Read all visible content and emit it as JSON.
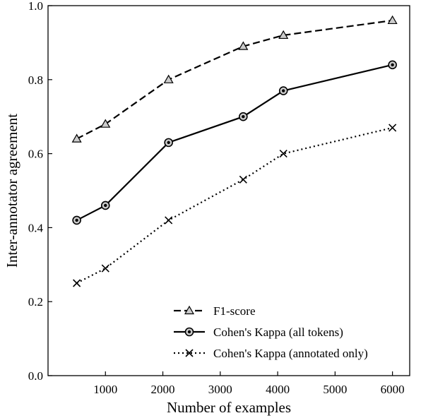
{
  "chart_data": {
    "type": "line",
    "title": "",
    "xlabel": "Number of examples",
    "ylabel": "Inter-annotator agreement",
    "xlim": [
      0,
      6300
    ],
    "ylim": [
      0.0,
      1.0
    ],
    "x_ticks": [
      1000,
      2000,
      3000,
      4000,
      5000,
      6000
    ],
    "y_ticks": [
      0.0,
      0.2,
      0.4,
      0.6,
      0.8,
      1.0
    ],
    "x_tick_labels": [
      "1000",
      "2000",
      "3000",
      "4000",
      "5000",
      "6000"
    ],
    "y_tick_labels": [
      "0.0",
      "0.2",
      "0.4",
      "0.6",
      "0.8",
      "1.0"
    ],
    "grid": false,
    "legend_position": "bottom-right",
    "x": [
      500,
      1000,
      2100,
      3400,
      4100,
      6000
    ],
    "series": [
      {
        "name": "F1-score",
        "values": [
          0.64,
          0.68,
          0.8,
          0.89,
          0.92,
          0.96
        ],
        "line_style": "dashed",
        "marker": "triangle",
        "color": "#000000"
      },
      {
        "name": "Cohen's Kappa (all tokens)",
        "values": [
          0.42,
          0.46,
          0.63,
          0.7,
          0.77,
          0.84
        ],
        "line_style": "solid",
        "marker": "circle",
        "color": "#000000"
      },
      {
        "name": "Cohen's Kappa (annotated only)",
        "values": [
          0.25,
          0.29,
          0.42,
          0.53,
          0.6,
          0.67
        ],
        "line_style": "dotted",
        "marker": "x",
        "color": "#000000"
      }
    ]
  }
}
